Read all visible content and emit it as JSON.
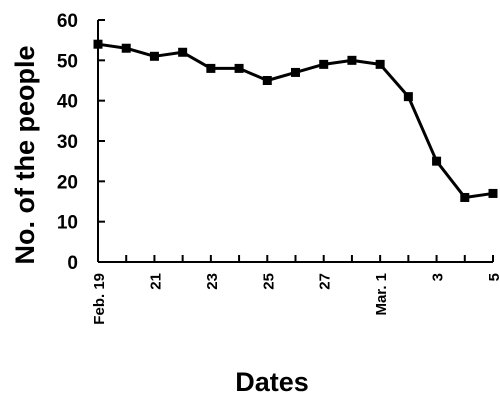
{
  "chart_data": {
    "type": "line",
    "xlabel": "Dates",
    "ylabel": "No. of the people",
    "ylim": [
      0,
      60
    ],
    "y_ticks": [
      "0",
      "10",
      "20",
      "30",
      "40",
      "50",
      "60"
    ],
    "x": [
      "Feb. 19",
      "Feb. 20",
      "Feb. 21",
      "Feb. 22",
      "Feb. 23",
      "Feb. 24",
      "Feb. 25",
      "Feb. 26",
      "Feb. 27",
      "Feb. 28",
      "Mar. 1",
      "Mar. 2",
      "Mar. 3",
      "Mar. 4",
      "Mar. 5"
    ],
    "x_tick_labels": [
      "Feb. 19",
      "",
      "21",
      "",
      "23",
      "",
      "25",
      "",
      "27",
      "",
      "Mar. 1",
      "",
      "3",
      "",
      "5"
    ],
    "values": [
      54,
      53,
      51,
      52,
      48,
      48,
      45,
      47,
      49,
      50,
      49,
      41,
      25,
      16,
      17
    ],
    "grid": false,
    "legend": "none",
    "line_color": "#000000",
    "marker": "square"
  }
}
